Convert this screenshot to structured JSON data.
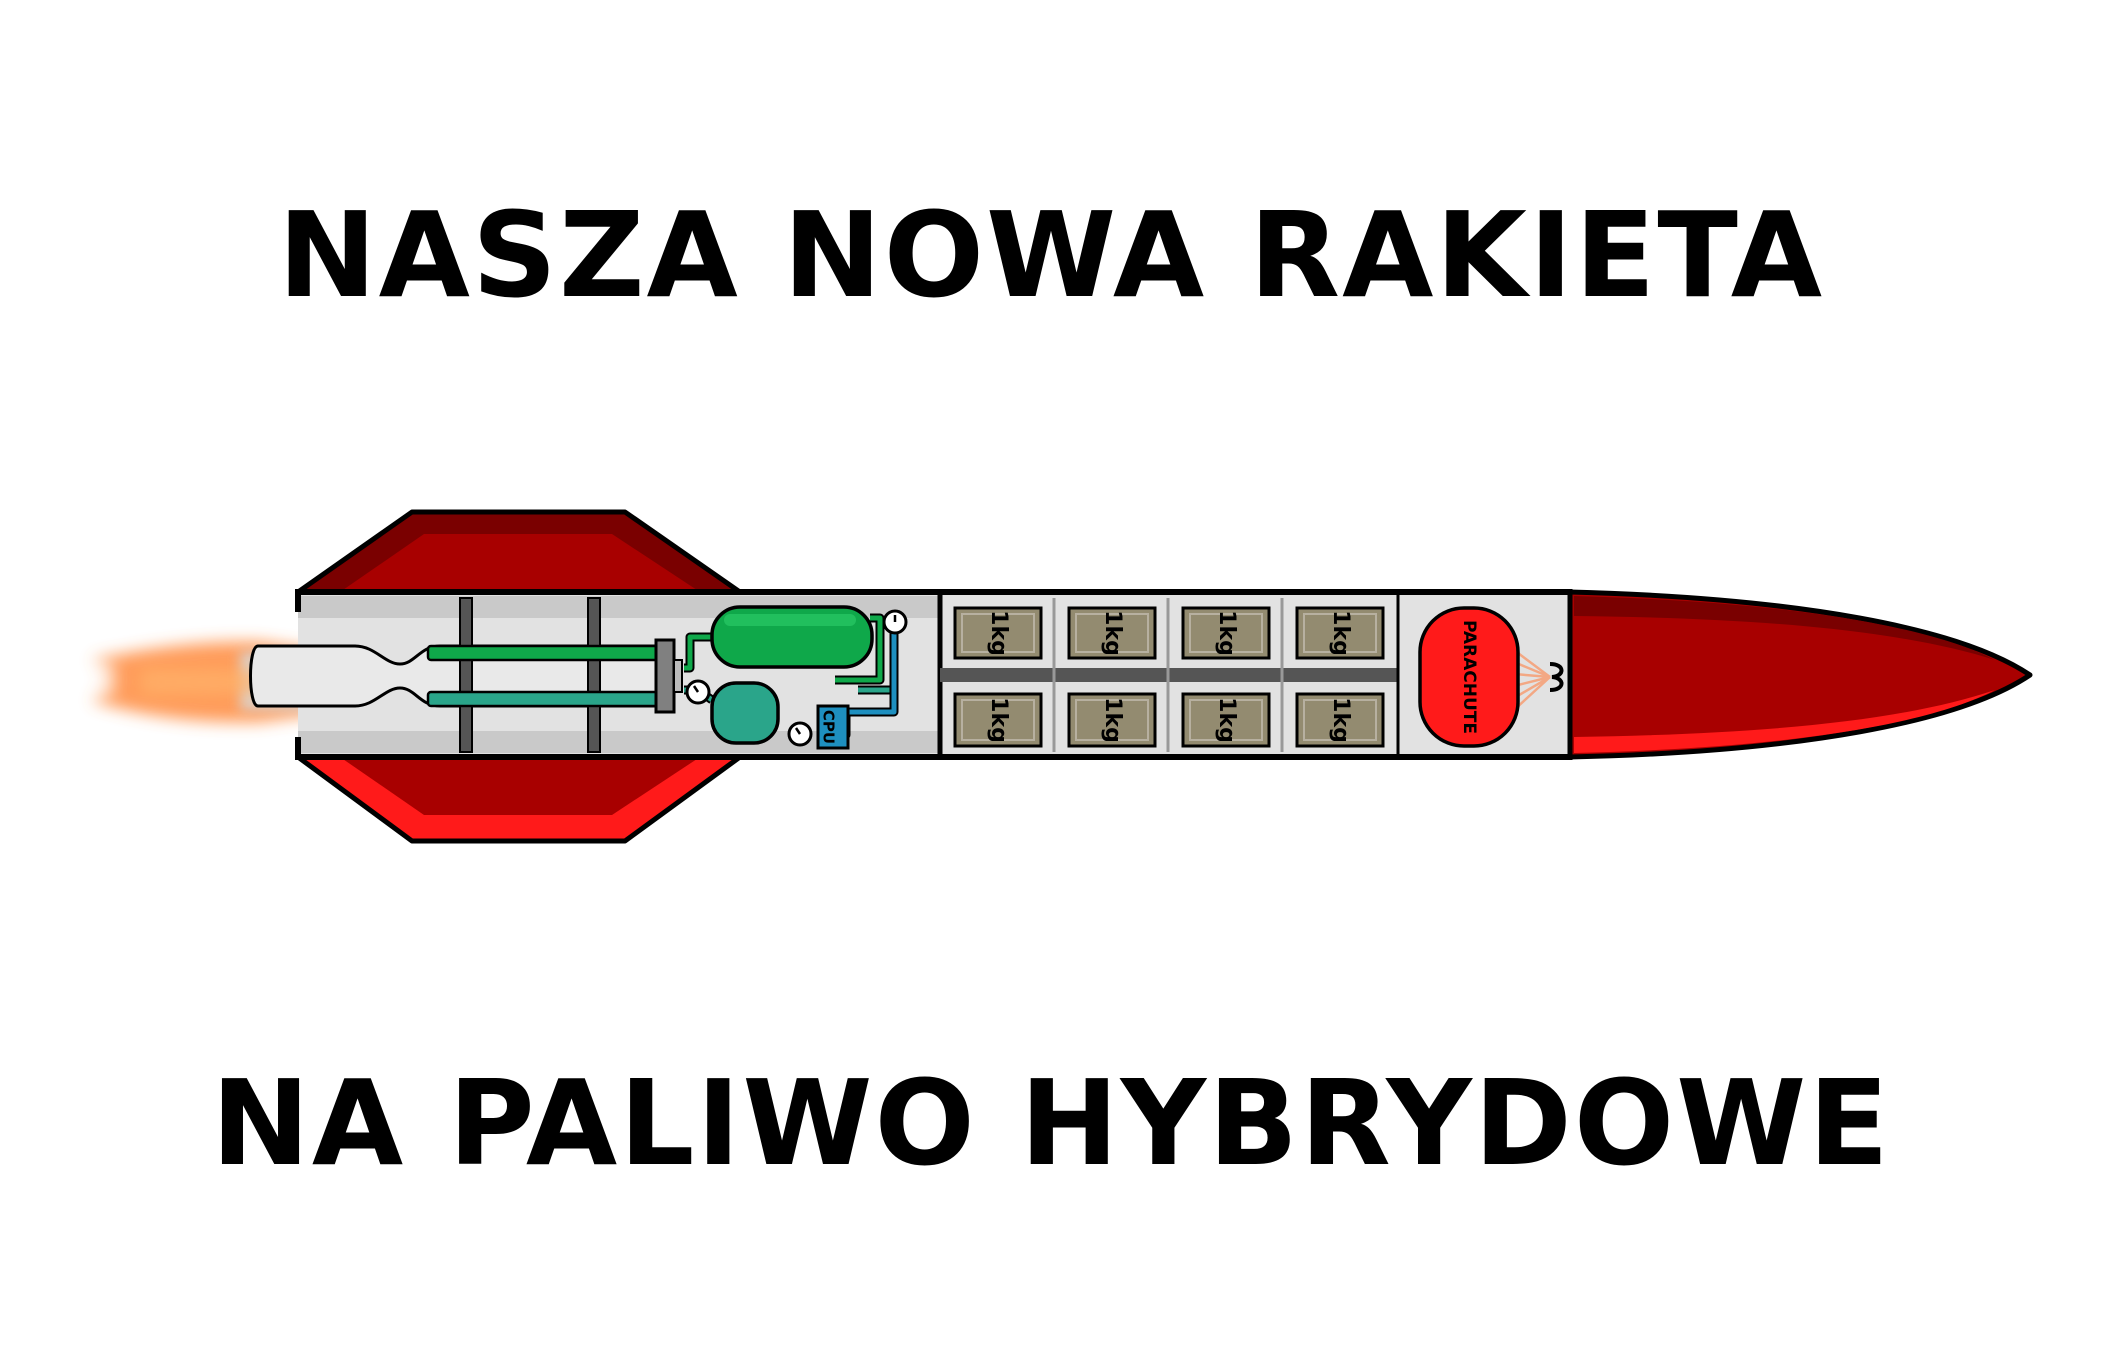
{
  "title_line1": "NASZA NOWA RAKIETA",
  "title_line2": "NA PALIWO HYBRYDOWE",
  "rocket": {
    "payload_labels": [
      "1kg",
      "1kg",
      "1kg",
      "1kg",
      "1kg",
      "1kg",
      "1kg",
      "1kg"
    ],
    "parachute_label": "PARACHUTE",
    "cpu_label": "CPU",
    "colors": {
      "body_red": "#a80000",
      "dark_red": "#7a0000",
      "bright_red": "#ff1a1a",
      "fuselage_grey": "#e2e2e2",
      "oxidizer_tank": "#0fa84a",
      "second_tank": "#2aa58a",
      "cpu_blue": "#1e8fbf",
      "payload_khaki": "#938b70",
      "flame_orange": "#ff8a3d"
    }
  }
}
